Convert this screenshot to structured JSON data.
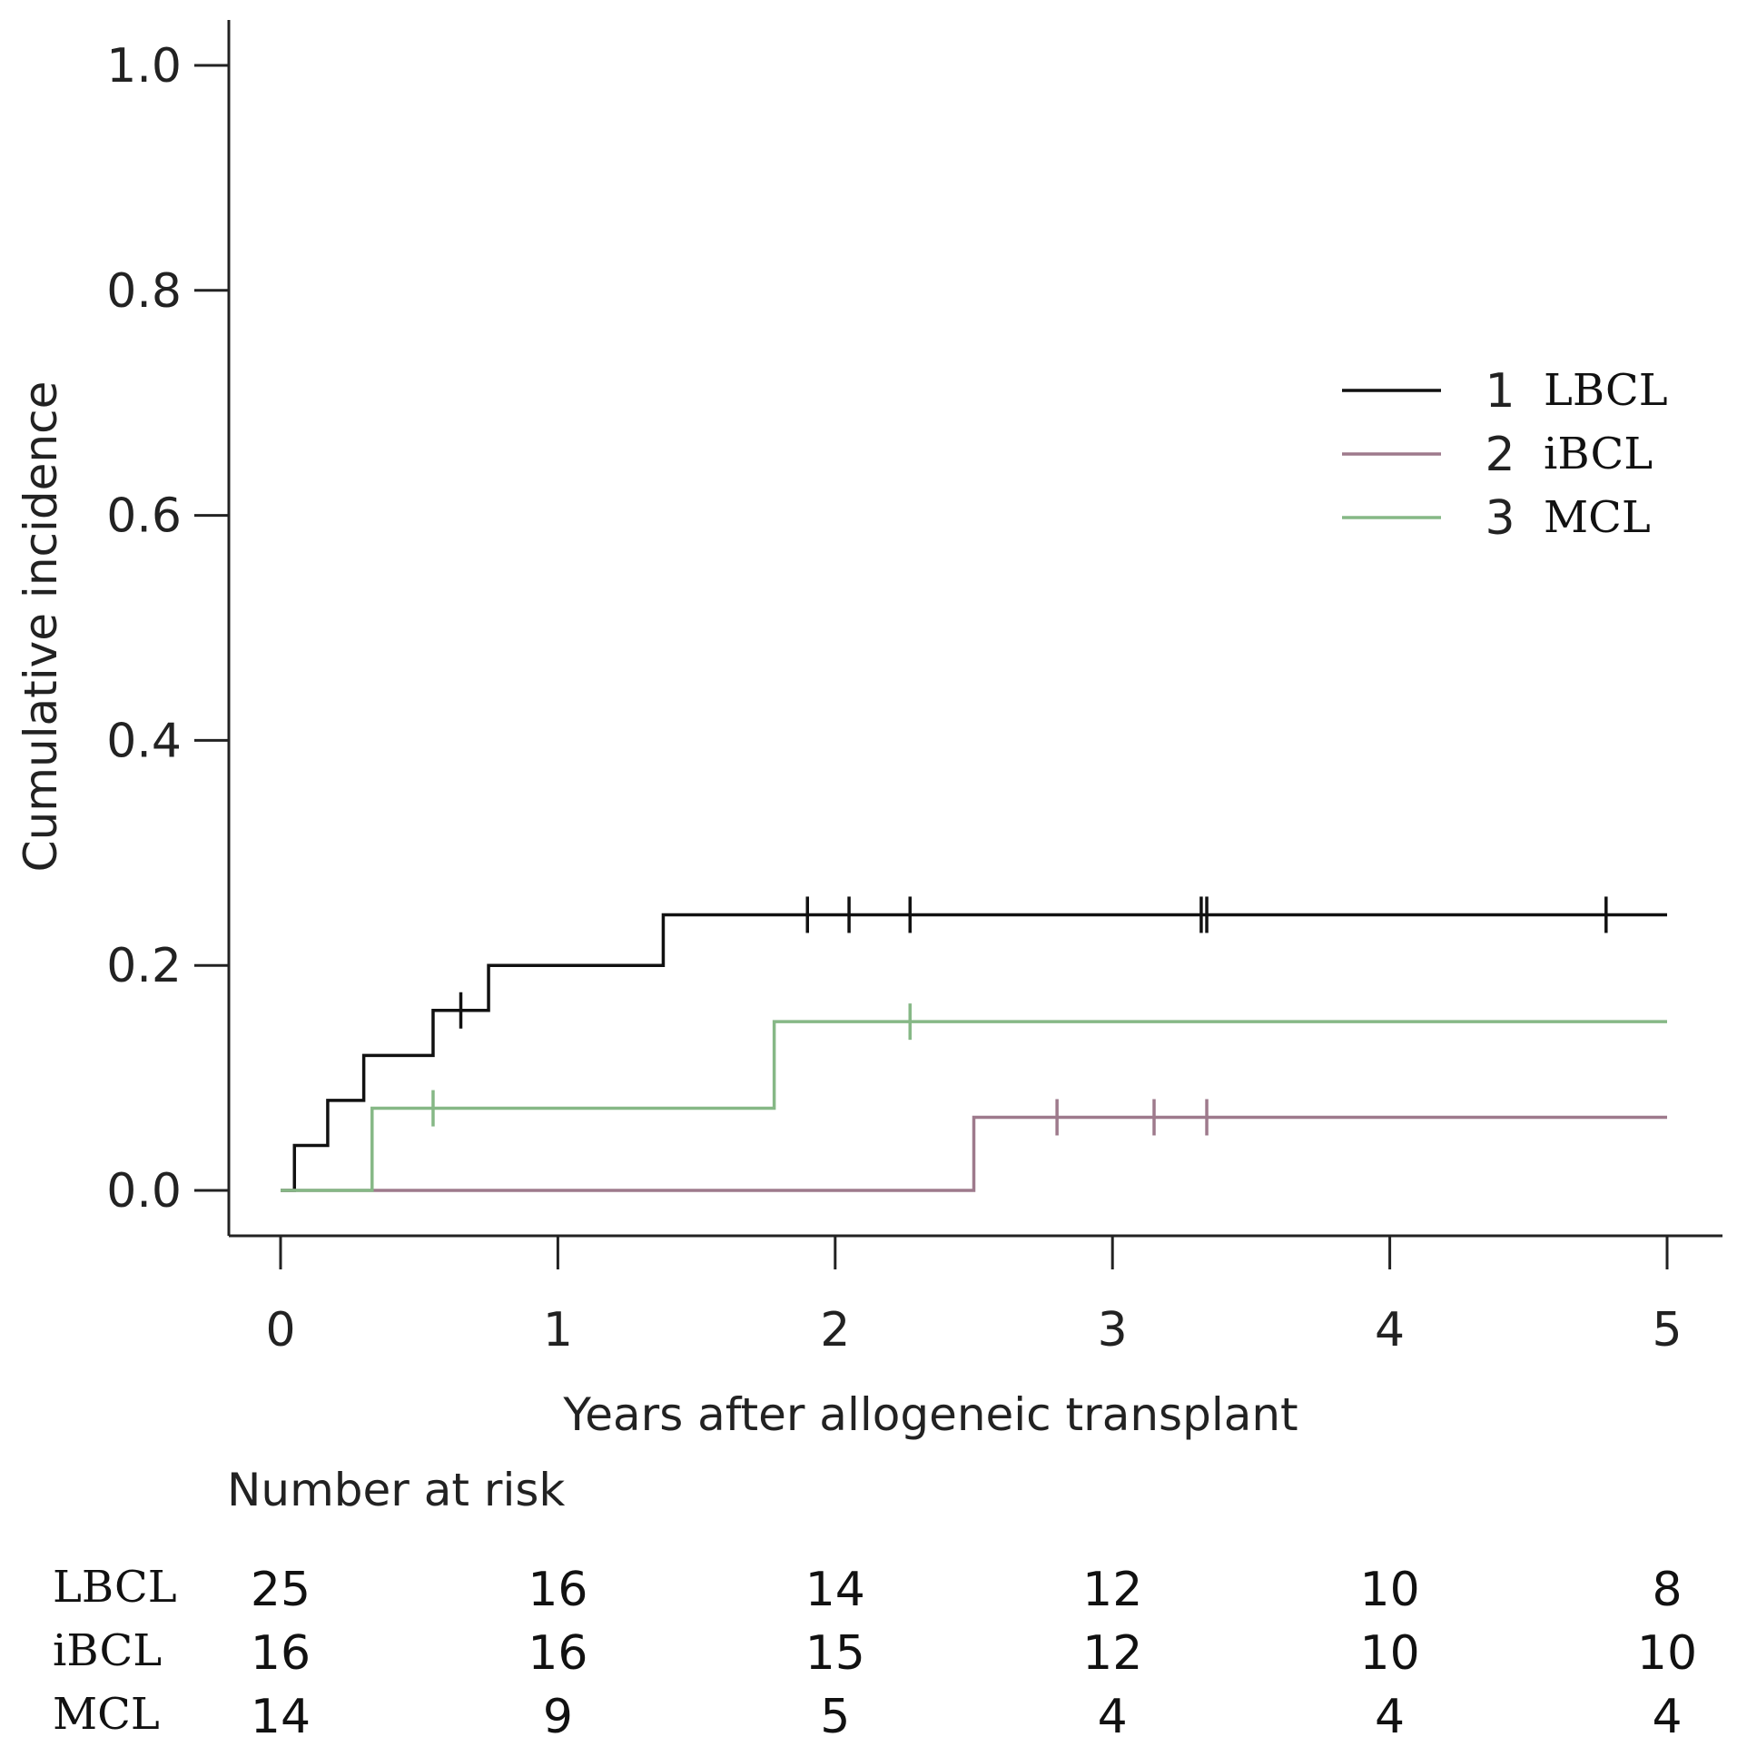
{
  "chart_data": {
    "type": "line",
    "title": "",
    "xlabel": "Years after allogeneic transplant",
    "ylabel": "Cumulative incidence",
    "xlim": [
      0,
      5
    ],
    "ylim": [
      0,
      1
    ],
    "x_ticks": [
      "0",
      "1",
      "2",
      "3",
      "4",
      "5"
    ],
    "y_ticks": [
      "0.0",
      "0.2",
      "0.4",
      "0.6",
      "0.8",
      "1.0"
    ],
    "grid": false,
    "legend_position": "right",
    "series": [
      {
        "name": "LBCL",
        "legend_number": "1",
        "legend_label": "LBCL",
        "color": "#111111",
        "steps": [
          [
            0,
            0
          ],
          [
            0.05,
            0.04
          ],
          [
            0.17,
            0.08
          ],
          [
            0.3,
            0.12
          ],
          [
            0.55,
            0.16
          ],
          [
            0.75,
            0.2
          ],
          [
            1.38,
            0.245
          ],
          [
            5,
            0.245
          ]
        ],
        "censored": [
          0.65,
          1.9,
          2.05,
          2.27,
          3.32,
          3.34,
          4.78
        ]
      },
      {
        "name": "iBCL",
        "legend_number": "2",
        "legend_label": "iBCL",
        "color": "#9e7a8c",
        "steps": [
          [
            0,
            0
          ],
          [
            2.5,
            0.065
          ],
          [
            5,
            0.065
          ]
        ],
        "censored": [
          2.8,
          3.15,
          3.34
        ]
      },
      {
        "name": "MCL",
        "legend_number": "3",
        "legend_label": "MCL",
        "color": "#86b886",
        "steps": [
          [
            0,
            0
          ],
          [
            0.33,
            0.073
          ],
          [
            1.78,
            0.15
          ],
          [
            5,
            0.15
          ]
        ],
        "censored": [
          0.55,
          2.27
        ]
      }
    ],
    "risk_table": {
      "title": "Number at risk",
      "times": [
        0,
        1,
        2,
        3,
        4,
        5
      ],
      "rows": [
        {
          "label": "LBCL",
          "values": [
            "25",
            "16",
            "14",
            "12",
            "10",
            "8"
          ]
        },
        {
          "label": "iBCL",
          "values": [
            "16",
            "16",
            "15",
            "12",
            "10",
            "10"
          ]
        },
        {
          "label": "MCL",
          "values": [
            "14",
            "9",
            "5",
            "4",
            "4",
            "4"
          ]
        }
      ]
    }
  }
}
